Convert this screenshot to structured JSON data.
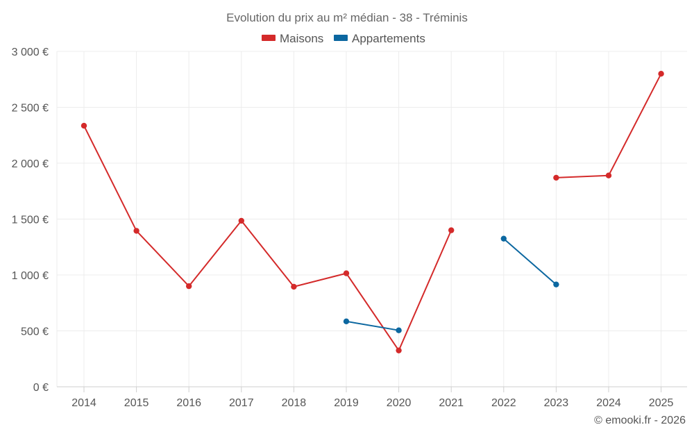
{
  "chart_data": {
    "type": "line",
    "title": "Evolution du prix au m² médian - 38 - Tréminis",
    "categories": [
      "2014",
      "2015",
      "2016",
      "2017",
      "2018",
      "2019",
      "2020",
      "2021",
      "2022",
      "2023",
      "2024",
      "2025"
    ],
    "series": [
      {
        "name": "Maisons",
        "color": "#d42a2a",
        "values": [
          2335,
          1395,
          900,
          1485,
          895,
          1015,
          325,
          1400,
          null,
          1870,
          1890,
          2800
        ]
      },
      {
        "name": "Appartements",
        "color": "#0b67a0",
        "values": [
          null,
          null,
          null,
          null,
          null,
          585,
          505,
          null,
          1325,
          915,
          null,
          null
        ]
      }
    ],
    "y_ticks": [
      "0 €",
      "500 €",
      "1 000 €",
      "1 500 €",
      "2 000 €",
      "2 500 €",
      "3 000 €"
    ],
    "ylim": [
      0,
      3000
    ],
    "y_step": 500,
    "grid": true,
    "legend_position": "top-center",
    "credit": "© emooki.fr - 2026"
  }
}
